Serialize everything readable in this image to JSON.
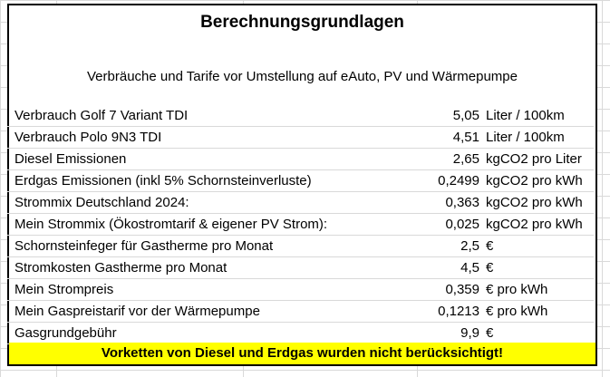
{
  "sheet": {
    "title": "Berechnungsgrundlagen",
    "subtitle": "Verbräuche und Tarife vor Umstellung auf eAuto, PV und Wärmepumpe",
    "rows": [
      {
        "label": "Verbrauch Golf 7 Variant TDI",
        "value": "5,05",
        "unit": "Liter / 100km"
      },
      {
        "label": "Verbrauch Polo 9N3 TDI",
        "value": "4,51",
        "unit": "Liter / 100km"
      },
      {
        "label": "Diesel Emissionen",
        "value": "2,65",
        "unit": "kgCO2 pro Liter"
      },
      {
        "label": "Erdgas Emissionen (inkl 5% Schornsteinverluste)",
        "value": "0,2499",
        "unit": "kgCO2 pro kWh"
      },
      {
        "label": "Strommix Deutschland 2024:",
        "value": "0,363",
        "unit": "kgCO2 pro kWh"
      },
      {
        "label": "Mein Strommix (Ökostromtarif & eigener PV Strom):",
        "value": "0,025",
        "unit": "kgCO2 pro kWh"
      },
      {
        "label": "Schornsteinfeger für Gastherme pro Monat",
        "value": "2,5",
        "unit": "€"
      },
      {
        "label": "Stromkosten Gastherme pro Monat",
        "value": "4,5",
        "unit": "€"
      },
      {
        "label": "Mein Strompreis",
        "value": "0,359",
        "unit": "€ pro kWh"
      },
      {
        "label": "Mein Gaspreistarif vor der Wärmepumpe",
        "value": "0,1213",
        "unit": "€ pro kWh"
      },
      {
        "label": "Gasgrundgebühr",
        "value": "9,9",
        "unit": "€"
      }
    ],
    "footer_note": "Vorketten von Diesel und Erdgas wurden nicht berücksichtigt!",
    "highlight_color": "#ffff00"
  }
}
